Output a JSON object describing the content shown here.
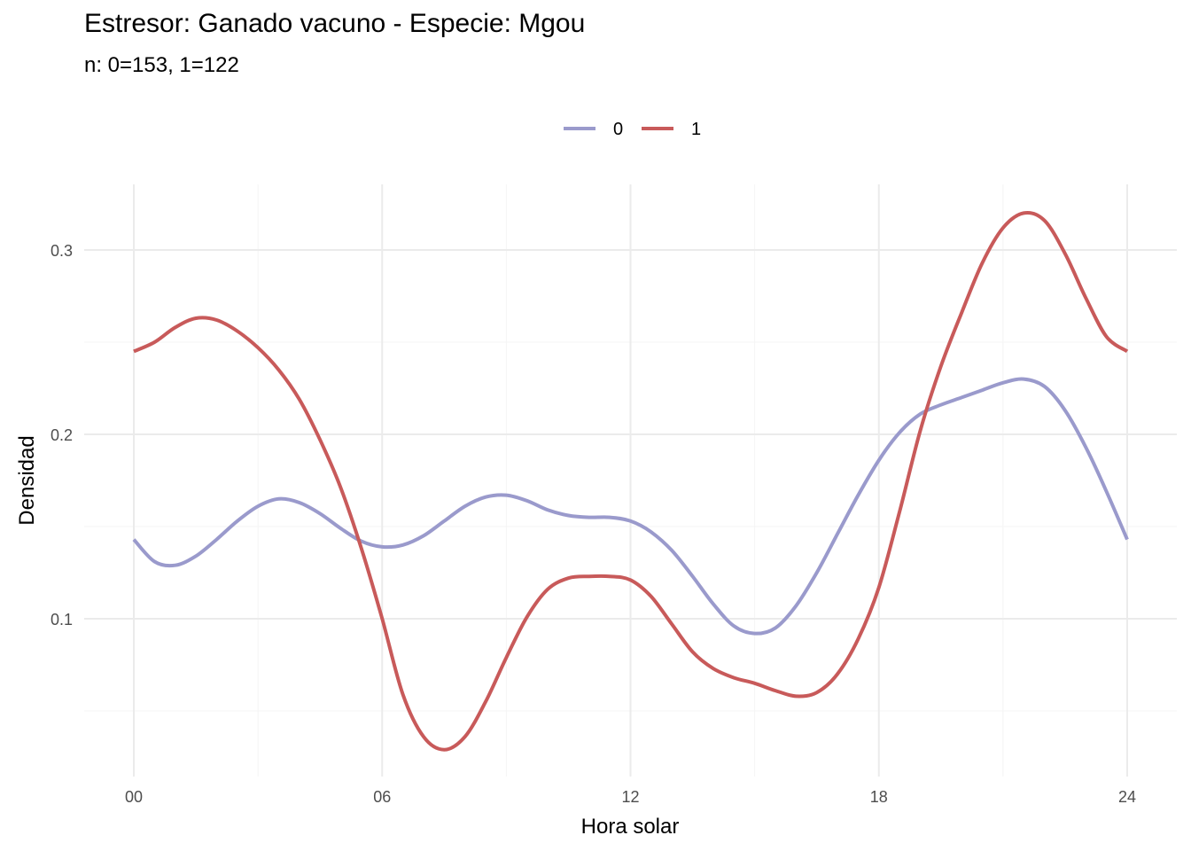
{
  "chart_data": {
    "type": "line",
    "title": "Estresor: Ganado vacuno - Especie:  Mgou",
    "subtitle": "n:  0=153, 1=122",
    "xlabel": "Hora solar",
    "ylabel": "Densidad",
    "xlim": [
      0,
      24
    ],
    "ylim": [
      0.017,
      0.333
    ],
    "x_ticks": [
      0,
      6,
      12,
      18,
      24
    ],
    "x_tick_labels": [
      "00",
      "06",
      "12",
      "18",
      "24"
    ],
    "y_ticks": [
      0.1,
      0.2,
      0.3
    ],
    "y_tick_labels": [
      "0.1",
      "0.2",
      "0.3"
    ],
    "grid": true,
    "legend_position": "top",
    "series": [
      {
        "name": "0",
        "color": "#9a9acc",
        "points": [
          [
            0,
            0.143
          ],
          [
            0.5,
            0.131
          ],
          [
            1,
            0.129
          ],
          [
            1.5,
            0.134
          ],
          [
            2,
            0.143
          ],
          [
            2.5,
            0.153
          ],
          [
            3,
            0.161
          ],
          [
            3.5,
            0.165
          ],
          [
            4,
            0.163
          ],
          [
            4.5,
            0.157
          ],
          [
            5,
            0.149
          ],
          [
            5.5,
            0.142
          ],
          [
            6,
            0.139
          ],
          [
            6.5,
            0.14
          ],
          [
            7,
            0.145
          ],
          [
            7.5,
            0.153
          ],
          [
            8,
            0.161
          ],
          [
            8.5,
            0.166
          ],
          [
            9,
            0.167
          ],
          [
            9.5,
            0.164
          ],
          [
            10,
            0.159
          ],
          [
            10.5,
            0.156
          ],
          [
            11,
            0.155
          ],
          [
            11.5,
            0.155
          ],
          [
            12,
            0.153
          ],
          [
            12.5,
            0.147
          ],
          [
            13,
            0.137
          ],
          [
            13.5,
            0.123
          ],
          [
            14,
            0.108
          ],
          [
            14.5,
            0.096
          ],
          [
            15,
            0.092
          ],
          [
            15.5,
            0.095
          ],
          [
            16,
            0.107
          ],
          [
            16.5,
            0.125
          ],
          [
            17,
            0.146
          ],
          [
            17.5,
            0.167
          ],
          [
            18,
            0.186
          ],
          [
            18.5,
            0.201
          ],
          [
            19,
            0.211
          ],
          [
            19.5,
            0.216
          ],
          [
            20,
            0.22
          ],
          [
            20.5,
            0.224
          ],
          [
            21,
            0.228
          ],
          [
            21.5,
            0.23
          ],
          [
            22,
            0.226
          ],
          [
            22.5,
            0.213
          ],
          [
            23,
            0.193
          ],
          [
            23.5,
            0.169
          ],
          [
            24,
            0.143
          ]
        ]
      },
      {
        "name": "1",
        "color": "#c85a5a",
        "points": [
          [
            0,
            0.245
          ],
          [
            0.5,
            0.25
          ],
          [
            1,
            0.258
          ],
          [
            1.5,
            0.263
          ],
          [
            2,
            0.262
          ],
          [
            2.5,
            0.256
          ],
          [
            3,
            0.247
          ],
          [
            3.5,
            0.235
          ],
          [
            4,
            0.219
          ],
          [
            4.5,
            0.197
          ],
          [
            5,
            0.171
          ],
          [
            5.5,
            0.138
          ],
          [
            6,
            0.1
          ],
          [
            6.5,
            0.059
          ],
          [
            7,
            0.036
          ],
          [
            7.5,
            0.029
          ],
          [
            8,
            0.036
          ],
          [
            8.5,
            0.055
          ],
          [
            9,
            0.079
          ],
          [
            9.5,
            0.101
          ],
          [
            10,
            0.116
          ],
          [
            10.5,
            0.122
          ],
          [
            11,
            0.123
          ],
          [
            11.5,
            0.123
          ],
          [
            12,
            0.121
          ],
          [
            12.5,
            0.112
          ],
          [
            13,
            0.097
          ],
          [
            13.5,
            0.082
          ],
          [
            14,
            0.073
          ],
          [
            14.5,
            0.068
          ],
          [
            15,
            0.065
          ],
          [
            15.5,
            0.061
          ],
          [
            16,
            0.058
          ],
          [
            16.5,
            0.06
          ],
          [
            17,
            0.07
          ],
          [
            17.5,
            0.089
          ],
          [
            18,
            0.117
          ],
          [
            18.5,
            0.158
          ],
          [
            19,
            0.202
          ],
          [
            19.5,
            0.237
          ],
          [
            20,
            0.266
          ],
          [
            20.5,
            0.293
          ],
          [
            21,
            0.312
          ],
          [
            21.5,
            0.32
          ],
          [
            22,
            0.316
          ],
          [
            22.5,
            0.298
          ],
          [
            23,
            0.274
          ],
          [
            23.5,
            0.253
          ],
          [
            24,
            0.245
          ]
        ]
      }
    ]
  }
}
